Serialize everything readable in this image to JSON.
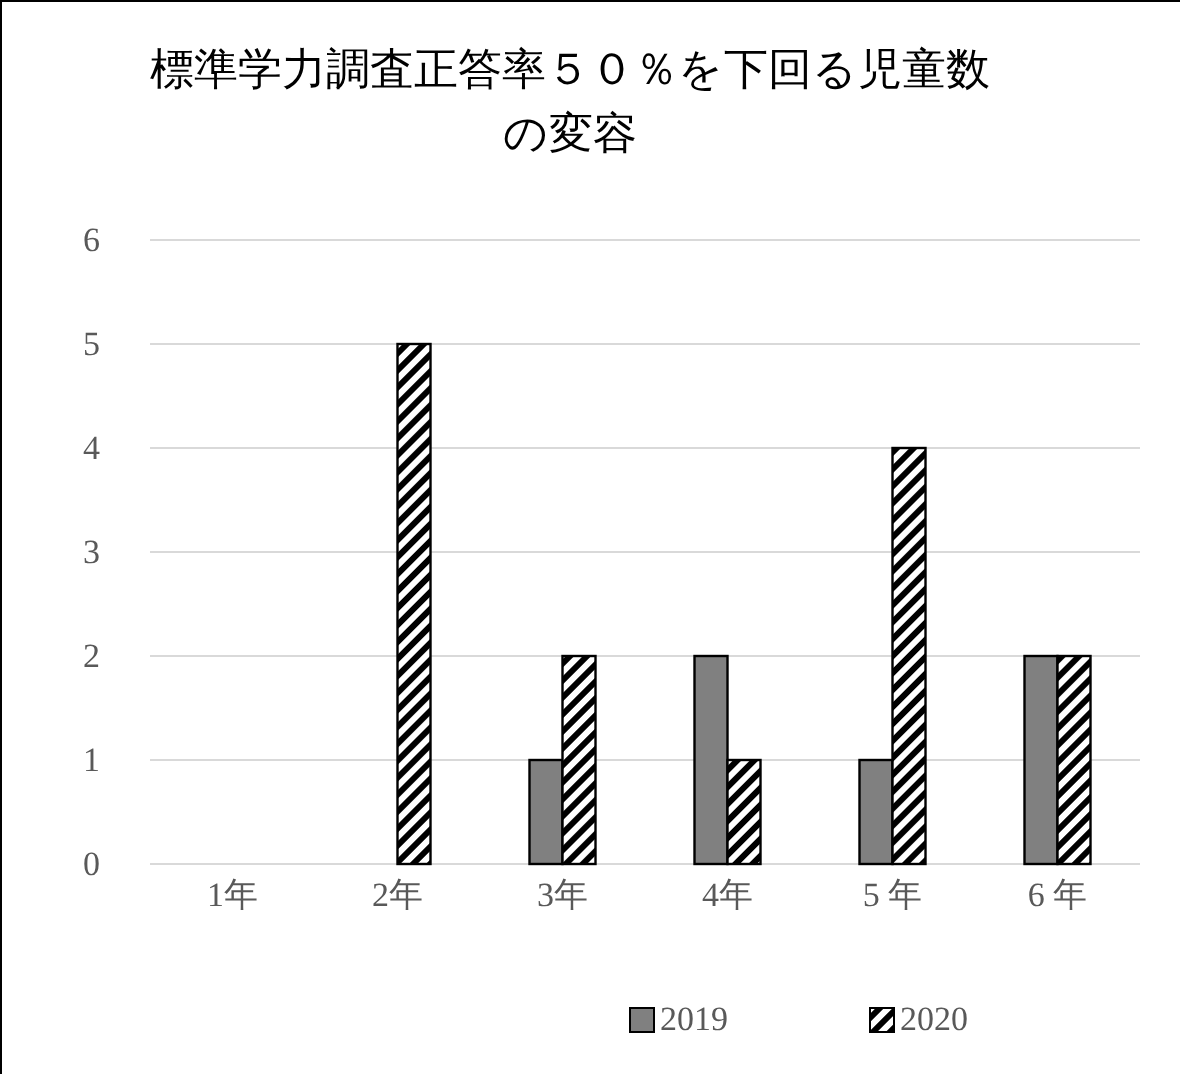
{
  "chart_data": {
    "type": "bar",
    "title": "標準学力調査正答率５０％を下回る児童数の変容",
    "categories": [
      "1年",
      "2年",
      "3年",
      "4年",
      "5 年",
      "6 年"
    ],
    "series": [
      {
        "name": "2019",
        "color": "#808080",
        "values": [
          0,
          0,
          1,
          2,
          1,
          2
        ]
      },
      {
        "name": "2020",
        "color": "#000000",
        "values": [
          0,
          5,
          2,
          1,
          4,
          2
        ]
      }
    ],
    "ylim": [
      0,
      6
    ],
    "yticks": [
      0,
      1,
      2,
      3,
      4,
      5,
      6
    ],
    "grid": "y",
    "legend": "bottom"
  }
}
